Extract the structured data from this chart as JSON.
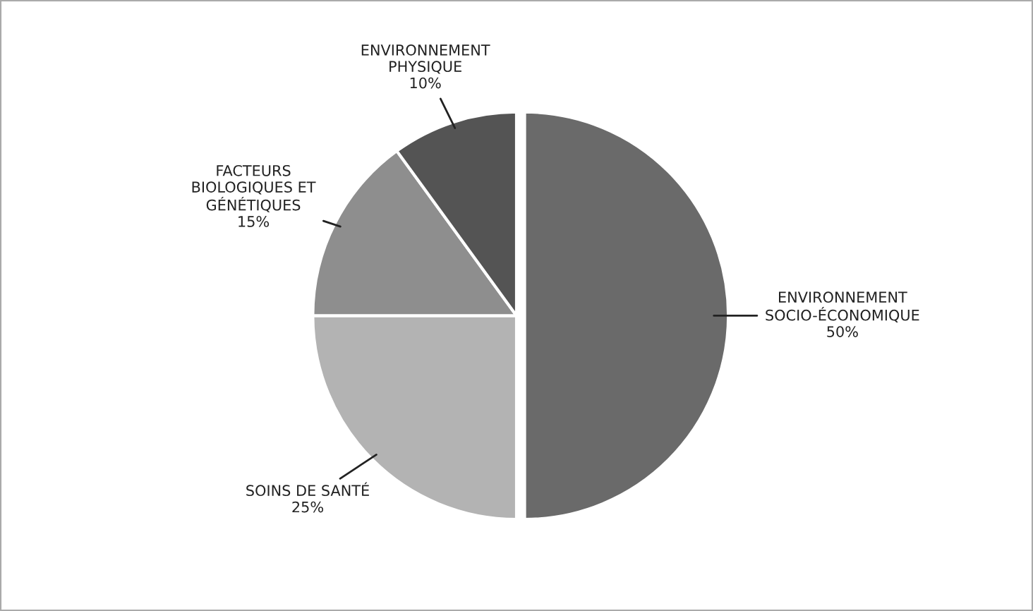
{
  "chart_data": {
    "type": "pie",
    "categories": [
      "ENVIRONNEMENT\nSOCIO-ÉCONOMIQUE",
      "SOINS DE SANTÉ",
      "FACTEURS\nBIOLOGIQUES ET\nGÉNÉTIQUES",
      "ENVIRONNEMENT\nPHYSIQUE"
    ],
    "values": [
      50,
      25,
      15,
      10
    ],
    "value_labels": [
      "50%",
      "25%",
      "15%",
      "10%"
    ],
    "colors": [
      "#6a6a6a",
      "#b3b3b3",
      "#8e8e8e",
      "#545454"
    ]
  }
}
